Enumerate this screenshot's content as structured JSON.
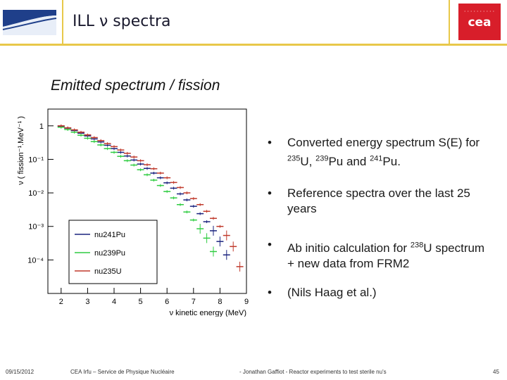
{
  "header": {
    "title": "ILL ν spectra",
    "cea_logo_text": "cea"
  },
  "subtitle": "Emitted spectrum / fission",
  "bullets": {
    "b1_prefix": "Converted energy spectrum S(E) for ",
    "b1_u": "235",
    "b1_u_sym": "U, ",
    "b1_pu239": "239",
    "b1_pu239_sym": "Pu and ",
    "b1_pu241": "241",
    "b1_pu241_sym": "Pu.",
    "b2": "Reference spectra over the last 25 years",
    "b3_prefix": "Ab initio calculation for ",
    "b3_sup": "238",
    "b3_suffix": "U spectrum + new data from FRM2",
    "b4": "(Nils Haag et al.)",
    "bullet_char": "•"
  },
  "footer": {
    "date": "09/15/2012",
    "org": "CEA Irfu – Service de Physique Nucléaire",
    "author": "- Jonathan Gaffiot - Reactor experiments to test sterile nu's",
    "page": "45"
  },
  "chart_data": {
    "type": "scatter",
    "title": "",
    "xlabel": "ν kinetic energy (MeV)",
    "ylabel": "ν ( fission⁻¹.MeV⁻¹ )",
    "xlim": [
      1.5,
      9
    ],
    "ylim_log10": [
      -5,
      0.5
    ],
    "x_ticks": [
      "2",
      "3",
      "4",
      "5",
      "6",
      "7",
      "8",
      "9"
    ],
    "y_ticks": [
      "1",
      "10⁻¹",
      "10⁻²",
      "10⁻³",
      "10⁻⁴"
    ],
    "y_tick_values": [
      0,
      -1,
      -2,
      -3,
      -4
    ],
    "legend_position": "lower-left",
    "series": [
      {
        "name": "nu241Pu",
        "color": "#1a237e",
        "x": [
          2.0,
          2.25,
          2.5,
          2.75,
          3.0,
          3.25,
          3.5,
          3.75,
          4.0,
          4.25,
          4.5,
          4.75,
          5.0,
          5.25,
          5.5,
          5.75,
          6.0,
          6.25,
          6.5,
          6.75,
          7.0,
          7.25,
          7.5,
          7.75,
          8.0,
          8.25
        ],
        "log10_y": [
          -0.01,
          -0.07,
          -0.14,
          -0.22,
          -0.3,
          -0.39,
          -0.48,
          -0.58,
          -0.68,
          -0.79,
          -0.9,
          -1.02,
          -1.14,
          -1.27,
          -1.41,
          -1.55,
          -1.7,
          -1.86,
          -2.03,
          -2.21,
          -2.4,
          -2.62,
          -2.86,
          -3.13,
          -3.45,
          -3.85
        ]
      },
      {
        "name": "nu239Pu",
        "color": "#2ecc40",
        "x": [
          2.0,
          2.25,
          2.5,
          2.75,
          3.0,
          3.25,
          3.5,
          3.75,
          4.0,
          4.25,
          4.5,
          4.75,
          5.0,
          5.25,
          5.5,
          5.75,
          6.0,
          6.25,
          6.5,
          6.75,
          7.0,
          7.25,
          7.5,
          7.75
        ],
        "log10_y": [
          -0.04,
          -0.11,
          -0.19,
          -0.28,
          -0.37,
          -0.47,
          -0.57,
          -0.68,
          -0.79,
          -0.91,
          -1.04,
          -1.17,
          -1.31,
          -1.46,
          -1.62,
          -1.78,
          -1.96,
          -2.15,
          -2.35,
          -2.57,
          -2.81,
          -3.07,
          -3.35,
          -3.75
        ]
      },
      {
        "name": "nu235U",
        "color": "#c0392b",
        "x": [
          2.0,
          2.25,
          2.5,
          2.75,
          3.0,
          3.25,
          3.5,
          3.75,
          4.0,
          4.25,
          4.5,
          4.75,
          5.0,
          5.25,
          5.5,
          5.75,
          6.0,
          6.25,
          6.5,
          6.75,
          7.0,
          7.25,
          7.5,
          7.75,
          8.0,
          8.25,
          8.5,
          8.75
        ],
        "log10_y": [
          0.0,
          -0.06,
          -0.12,
          -0.19,
          -0.27,
          -0.35,
          -0.44,
          -0.53,
          -0.62,
          -0.72,
          -0.82,
          -0.93,
          -1.04,
          -1.16,
          -1.28,
          -1.41,
          -1.55,
          -1.69,
          -1.84,
          -2.0,
          -2.17,
          -2.35,
          -2.55,
          -2.76,
          -3.0,
          -3.27,
          -3.6,
          -4.2
        ]
      }
    ]
  }
}
